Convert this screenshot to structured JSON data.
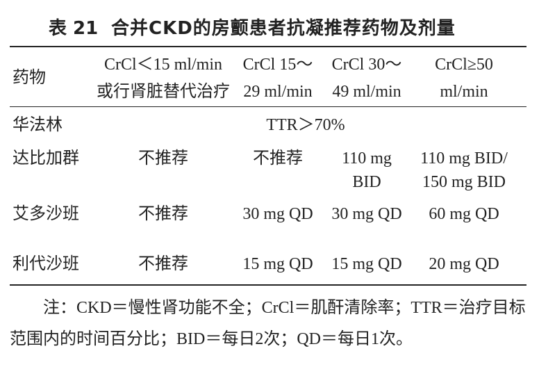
{
  "title": {
    "label": "表 21",
    "text": "合并CKD的房颤患者抗凝推荐药物及剂量"
  },
  "table": {
    "header": [
      [
        "药物"
      ],
      [
        "CrCl＜15 ml/min",
        "或行肾脏替代治疗"
      ],
      [
        "CrCl 15～",
        "29 ml/min"
      ],
      [
        "CrCl 30～",
        "49 ml/min"
      ],
      [
        "CrCl≥50",
        "ml/min"
      ]
    ],
    "rows": [
      [
        [
          "华法林"
        ],
        [
          "TTR＞70%"
        ]
      ],
      [
        [
          "达比加群"
        ],
        [
          "不推荐"
        ],
        [
          "不推荐"
        ],
        [
          "110 mg",
          "BID"
        ],
        [
          "110 mg BID/",
          "150 mg BID"
        ]
      ],
      [
        [
          "艾多沙班"
        ],
        [
          "不推荐"
        ],
        [
          "30 mg QD"
        ],
        [
          "30 mg QD"
        ],
        [
          "60 mg QD"
        ]
      ],
      [
        [
          "利代沙班"
        ],
        [
          "不推荐"
        ],
        [
          "15 mg QD"
        ],
        [
          "15 mg QD"
        ],
        [
          "20 mg QD"
        ]
      ]
    ]
  },
  "note": "注：CKD＝慢性肾功能不全；CrCl＝肌酐清除率；TTR＝治疗目标范围内的时间百分比；BID＝每日2次；QD＝每日1次。"
}
